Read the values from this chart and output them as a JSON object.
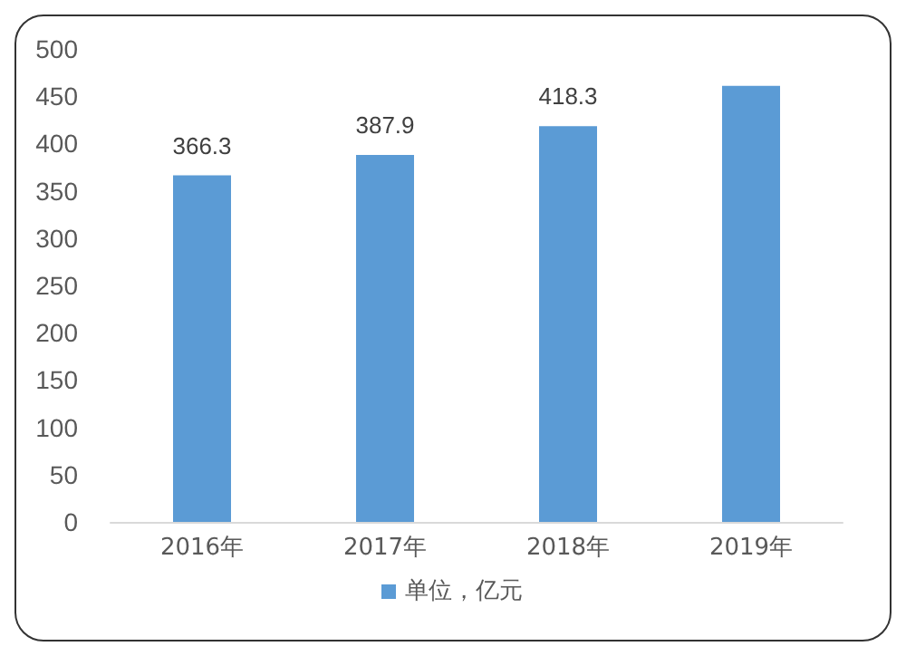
{
  "chart_data": {
    "type": "bar",
    "categories": [
      "2016年",
      "2017年",
      "2018年",
      "2019年"
    ],
    "series": [
      {
        "name": "单位，亿元",
        "color": "#5b9bd5",
        "values": [
          366.3,
          387.9,
          418.3,
          461
        ],
        "value_labels": [
          "366.3",
          "387.9",
          "418.3",
          null
        ]
      }
    ],
    "ylim": [
      0,
      500
    ],
    "yticks": [
      0,
      50,
      100,
      150,
      200,
      250,
      300,
      350,
      400,
      450,
      500
    ],
    "grid": false,
    "legend": "bottom"
  }
}
